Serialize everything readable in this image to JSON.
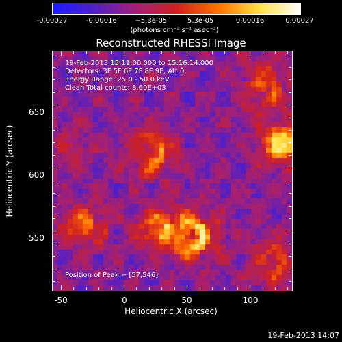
{
  "title": "Reconstructed RHESSI Image",
  "colorbar": {
    "tick_labels": [
      "-0.00027",
      "-0.00016",
      "−5.3e-05",
      "5.3e-05",
      "0.00016",
      "0.00027"
    ],
    "unit": "(photons cm⁻² s⁻¹ asec⁻²)",
    "colors": [
      "#1a1aff",
      "#5020c8",
      "#a02078",
      "#d02020",
      "#ff7000",
      "#ffe040",
      "#ffffff"
    ]
  },
  "info": {
    "time_range": "19-Feb-2013 15:11:00.000 to 15:16:14.000",
    "detectors": "Detectors: 3F 5F 6F 7F 8F 9F, Att 0",
    "energy": "Energy Range: 25.0 - 50.0 keV",
    "clean": "Clean     Total counts: 8.60E+03",
    "peak": "Position of Peak = [57,546]"
  },
  "axes": {
    "xlabel": "Heliocentric X (arcsec)",
    "ylabel": "Heliocentric Y (arcsec)",
    "xticks": [
      "-50",
      "0",
      "50",
      "100"
    ],
    "yticks": [
      "650",
      "600",
      "550"
    ]
  },
  "timestamp": "19-Feb-2013 14:07",
  "chart_data": {
    "type": "heatmap",
    "title": "Reconstructed RHESSI Image",
    "xlabel": "Heliocentric X (arcsec)",
    "ylabel": "Heliocentric Y (arcsec)",
    "xlim": [
      -57,
      133
    ],
    "ylim": [
      503,
      693
    ],
    "xticks": [
      -50,
      0,
      50,
      100
    ],
    "yticks": [
      550,
      600,
      650
    ],
    "color_range": [
      -0.00027,
      0.00027
    ],
    "peak": [
      57,
      546
    ],
    "sources": [
      {
        "x": 22,
        "y": 612,
        "strength": 0.8
      },
      {
        "x": 128,
        "y": 620,
        "strength": 1.0
      },
      {
        "x": 57,
        "y": 546,
        "strength": 1.0
      },
      {
        "x": 30,
        "y": 552,
        "strength": 0.7
      },
      {
        "x": 110,
        "y": 665,
        "strength": 0.7
      },
      {
        "x": -30,
        "y": 555,
        "strength": 0.6
      },
      {
        "x": 120,
        "y": 525,
        "strength": 0.6
      },
      {
        "x": -45,
        "y": 615,
        "strength": 0.3
      }
    ]
  }
}
